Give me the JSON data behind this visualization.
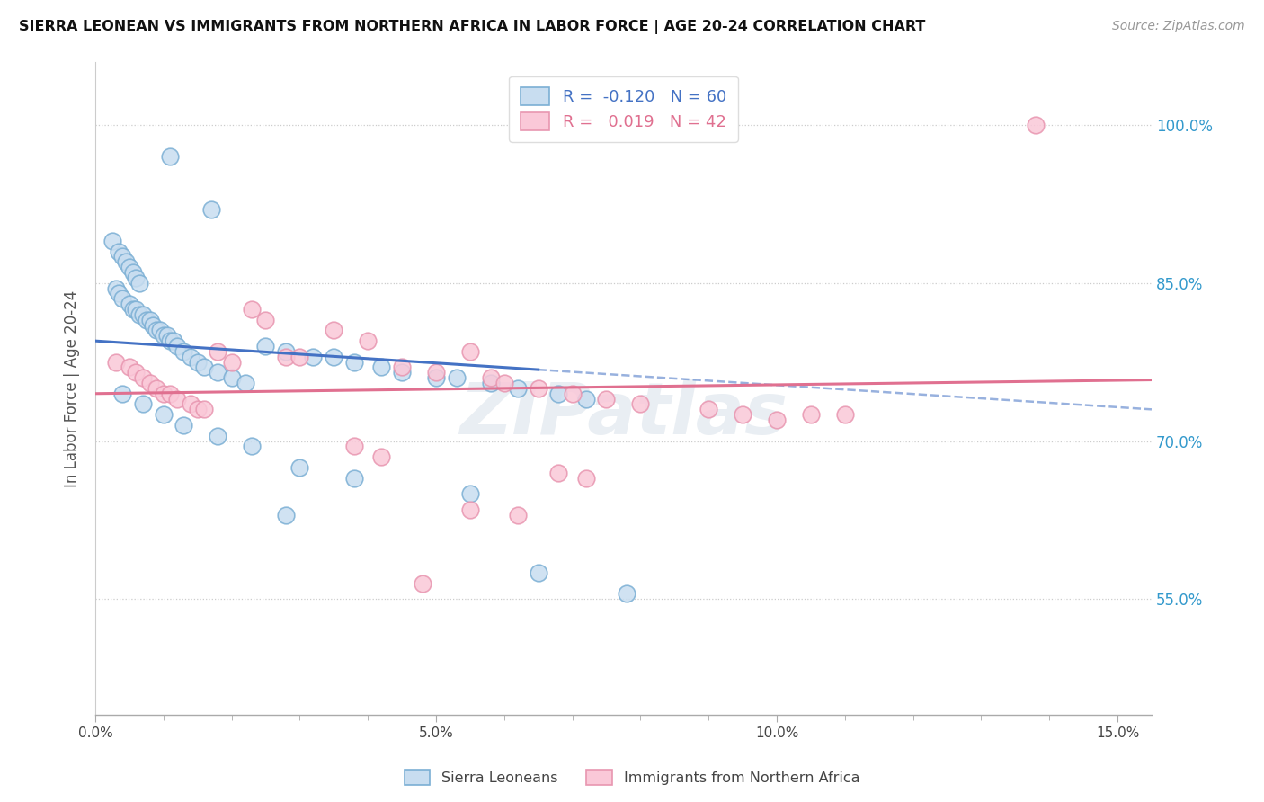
{
  "title": "SIERRA LEONEAN VS IMMIGRANTS FROM NORTHERN AFRICA IN LABOR FORCE | AGE 20-24 CORRELATION CHART",
  "source": "Source: ZipAtlas.com",
  "xlabel_vals": [
    0.0,
    5.0,
    10.0,
    15.0
  ],
  "ylabel_vals": [
    55.0,
    70.0,
    85.0,
    100.0
  ],
  "xmin": 0.0,
  "xmax": 15.5,
  "ymin": 44.0,
  "ymax": 106.0,
  "ylabel_label": "In Labor Force | Age 20-24",
  "legend_entries": [
    {
      "label": "Sierra Leoneans",
      "color": "#b8d0e8",
      "R": "-0.120",
      "N": "60"
    },
    {
      "label": "Immigrants from Northern Africa",
      "color": "#f5b8c8",
      "R": "0.019",
      "N": "42"
    }
  ],
  "blue_scatter_x": [
    1.1,
    1.7,
    0.25,
    0.35,
    0.4,
    0.45,
    0.5,
    0.55,
    0.6,
    0.65,
    0.3,
    0.35,
    0.4,
    0.5,
    0.55,
    0.6,
    0.65,
    0.7,
    0.75,
    0.8,
    0.85,
    0.9,
    0.95,
    1.0,
    1.05,
    1.1,
    1.15,
    1.2,
    1.3,
    1.4,
    1.5,
    1.6,
    1.8,
    2.0,
    2.2,
    2.5,
    2.8,
    3.2,
    3.5,
    3.8,
    4.2,
    4.5,
    5.0,
    5.3,
    5.8,
    6.2,
    6.8,
    7.2,
    0.4,
    0.7,
    1.0,
    1.3,
    1.8,
    2.3,
    3.0,
    3.8,
    5.5,
    6.5,
    2.8,
    7.8
  ],
  "blue_scatter_y": [
    97.0,
    92.0,
    89.0,
    88.0,
    87.5,
    87.0,
    86.5,
    86.0,
    85.5,
    85.0,
    84.5,
    84.0,
    83.5,
    83.0,
    82.5,
    82.5,
    82.0,
    82.0,
    81.5,
    81.5,
    81.0,
    80.5,
    80.5,
    80.0,
    80.0,
    79.5,
    79.5,
    79.0,
    78.5,
    78.0,
    77.5,
    77.0,
    76.5,
    76.0,
    75.5,
    79.0,
    78.5,
    78.0,
    78.0,
    77.5,
    77.0,
    76.5,
    76.0,
    76.0,
    75.5,
    75.0,
    74.5,
    74.0,
    74.5,
    73.5,
    72.5,
    71.5,
    70.5,
    69.5,
    67.5,
    66.5,
    65.0,
    57.5,
    63.0,
    55.5
  ],
  "pink_scatter_x": [
    0.3,
    0.5,
    0.6,
    0.7,
    0.8,
    0.9,
    1.0,
    1.1,
    1.2,
    1.4,
    1.5,
    1.6,
    1.8,
    2.0,
    2.3,
    2.5,
    2.8,
    3.0,
    3.5,
    4.0,
    4.5,
    5.0,
    5.5,
    5.8,
    6.0,
    6.5,
    7.0,
    7.5,
    8.0,
    9.0,
    9.5,
    10.0,
    10.5,
    11.0,
    3.8,
    4.2,
    6.8,
    7.2,
    5.5,
    6.2,
    4.8,
    13.8
  ],
  "pink_scatter_y": [
    77.5,
    77.0,
    76.5,
    76.0,
    75.5,
    75.0,
    74.5,
    74.5,
    74.0,
    73.5,
    73.0,
    73.0,
    78.5,
    77.5,
    82.5,
    81.5,
    78.0,
    78.0,
    80.5,
    79.5,
    77.0,
    76.5,
    78.5,
    76.0,
    75.5,
    75.0,
    74.5,
    74.0,
    73.5,
    73.0,
    72.5,
    72.0,
    72.5,
    72.5,
    69.5,
    68.5,
    67.0,
    66.5,
    63.5,
    63.0,
    56.5,
    100.0
  ],
  "blue_line_x0": 0.0,
  "blue_line_x1": 15.5,
  "blue_line_y0": 79.5,
  "blue_line_y1": 73.0,
  "blue_solid_x1": 6.5,
  "pink_line_x0": 0.0,
  "pink_line_x1": 15.5,
  "pink_line_y0": 74.5,
  "pink_line_y1": 75.8,
  "background_color": "#ffffff",
  "grid_color": "#cccccc",
  "blue_fill_color": "#c8ddf0",
  "blue_edge_color": "#7bafd4",
  "pink_fill_color": "#fac8d8",
  "pink_edge_color": "#e896b0",
  "blue_line_color": "#4472c4",
  "pink_line_color": "#e07090",
  "watermark": "ZIPatlas"
}
